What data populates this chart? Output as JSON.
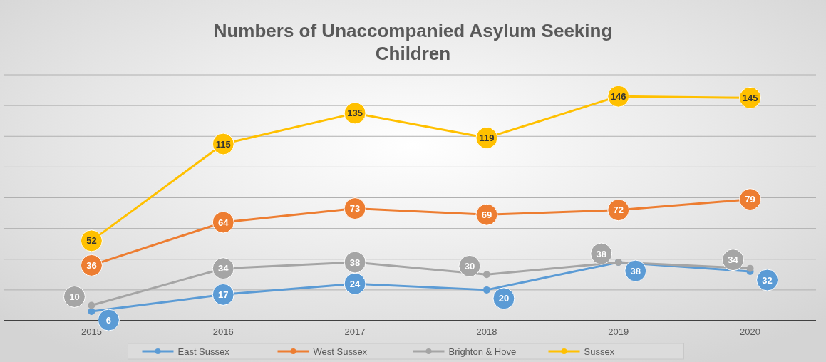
{
  "chart_data": {
    "type": "line",
    "title": "Numbers of Unaccompanied Asylum Seeking Children",
    "categories": [
      "2015",
      "2016",
      "2017",
      "2018",
      "2019",
      "2020"
    ],
    "series": [
      {
        "name": "East Sussex",
        "color": "#5b9bd5",
        "values": [
          6,
          17,
          24,
          20,
          38,
          32
        ]
      },
      {
        "name": "West Sussex",
        "color": "#ed7d31",
        "values": [
          36,
          64,
          73,
          69,
          72,
          79
        ]
      },
      {
        "name": "Brighton & Hove",
        "color": "#a5a5a5",
        "values": [
          10,
          34,
          38,
          30,
          38,
          34
        ]
      },
      {
        "name": "Sussex",
        "color": "#ffc000",
        "values": [
          52,
          115,
          135,
          119,
          146,
          145
        ]
      }
    ],
    "ylim": [
      0,
      160
    ],
    "yticks": [
      {
        "value": 0,
        "label": null
      },
      {
        "value": 20,
        "label": null
      },
      {
        "value": 40,
        "label": null
      },
      {
        "value": 60,
        "label": null
      },
      {
        "value": 80,
        "label": null
      },
      {
        "value": 100,
        "label": null
      },
      {
        "value": 120,
        "label": null
      },
      {
        "value": 140,
        "label": null
      },
      {
        "value": 160,
        "label": null
      }
    ],
    "grid": "y",
    "legend": "bottom",
    "marker": "circle",
    "line_style": "solid",
    "data_labels": true
  }
}
